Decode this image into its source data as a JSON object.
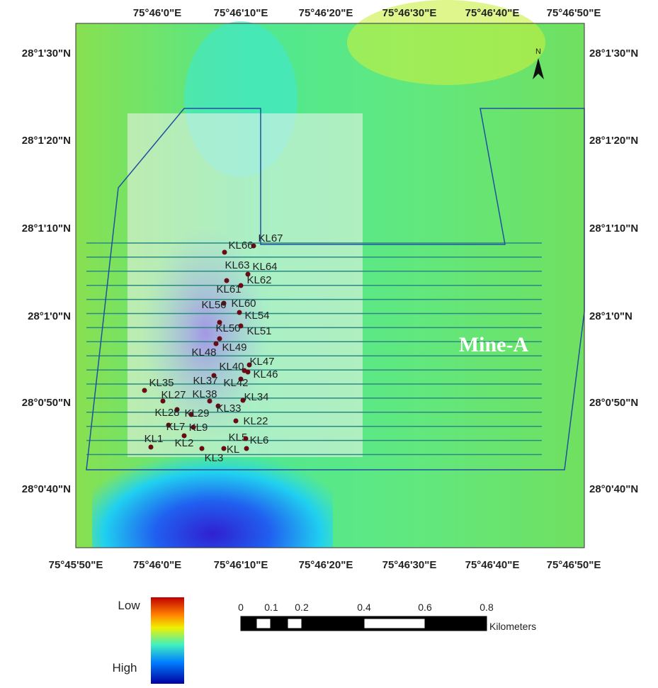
{
  "map": {
    "top_labels": [
      "75°46'0\"E",
      "75°46'10\"E",
      "75°46'20\"E",
      "75°46'30\"E",
      "75°46'40\"E",
      "75°46'50\"E"
    ],
    "bottom_labels": [
      "75°45'50\"E",
      "75°46'0\"E",
      "75°46'10\"E",
      "75°46'20\"E",
      "75°46'30\"E",
      "75°46'40\"E",
      "75°46'50\"E"
    ],
    "left_labels": [
      "28°1'30\"N",
      "28°1'20\"N",
      "28°1'10\"N",
      "28°1'0\"N",
      "28°0'50\"N",
      "28°0'40\"N"
    ],
    "right_labels": [
      "28°1'30\"N",
      "28°1'20\"N",
      "28°1'10\"N",
      "28°1'0\"N",
      "28°0'50\"N",
      "28°0'40\"N"
    ],
    "north": "N",
    "area_label": "Mine-A",
    "points": [
      "KL67",
      "KL66",
      "KL63",
      "KL64",
      "KL62",
      "KL61",
      "KL56",
      "KL60",
      "KL54",
      "KL50",
      "KL51",
      "KL49",
      "KL48",
      "KL47",
      "KL40",
      "KL46",
      "KL37",
      "KL42",
      "KL35",
      "KL27",
      "KL38",
      "KL34",
      "KL33",
      "KL28",
      "KL29",
      "KL22",
      "KL7",
      "KL9",
      "KL1",
      "KL5",
      "KL6",
      "KL2",
      "KL3",
      "KL"
    ]
  },
  "legend": {
    "low": "Low",
    "high": "High"
  },
  "scale_bar": {
    "labels": [
      "0",
      "0.1",
      "0.2",
      "0.4",
      "0.6",
      "0.8"
    ],
    "unit": "Kilometers"
  }
}
